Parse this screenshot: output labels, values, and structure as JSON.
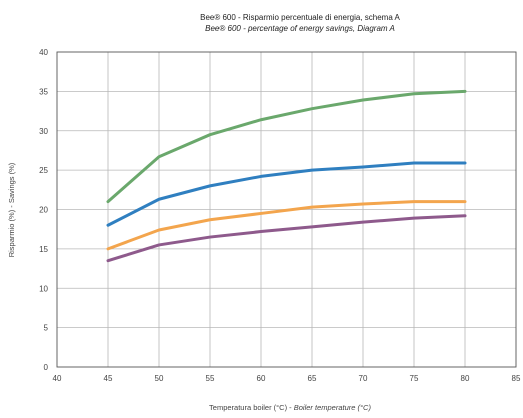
{
  "chart_data": {
    "type": "line",
    "title": "Bee® 600 - Risparmio percentuale di energia, schema A",
    "subtitle": "Bee® 600 - percentage of energy savings, Diagram A",
    "xlabel_it": "Temperatura boiler (°C) - ",
    "xlabel_en": "Boiler temperature (°C)",
    "ylabel": "Risparmio (%) - Savings (%)",
    "xlim": [
      40,
      85
    ],
    "ylim": [
      0,
      40
    ],
    "xticks": [
      40,
      45,
      50,
      55,
      60,
      65,
      70,
      75,
      80,
      85
    ],
    "yticks": [
      0,
      5,
      10,
      15,
      20,
      25,
      30,
      35,
      40
    ],
    "grid": true,
    "x": [
      45,
      50,
      55,
      60,
      65,
      70,
      75,
      80
    ],
    "series": [
      {
        "color": "#6aa86c",
        "values": [
          21,
          26.7,
          29.5,
          31.4,
          32.8,
          33.9,
          34.7,
          35.0
        ]
      },
      {
        "color": "#2f7fc0",
        "values": [
          18,
          21.3,
          23.0,
          24.2,
          25.0,
          25.4,
          25.9,
          25.9
        ]
      },
      {
        "color": "#f3a54d",
        "values": [
          15,
          17.4,
          18.7,
          19.5,
          20.3,
          20.7,
          21.0,
          21.0
        ]
      },
      {
        "color": "#8e5a8c",
        "values": [
          13.5,
          15.5,
          16.5,
          17.2,
          17.8,
          18.4,
          18.9,
          19.2
        ]
      }
    ]
  }
}
